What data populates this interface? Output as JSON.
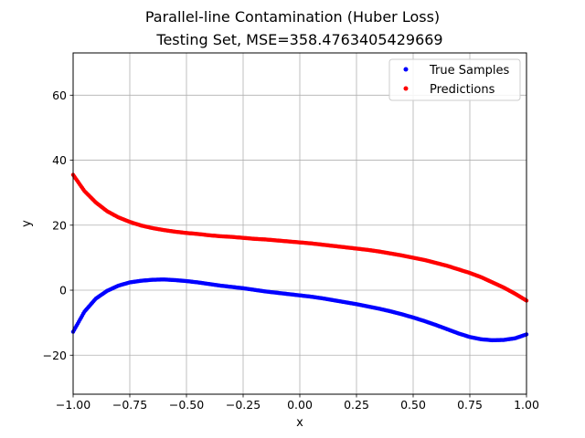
{
  "chart_data": {
    "type": "scatter",
    "title": "Parallel-line Contamination (Huber Loss)",
    "subtitle": "Testing Set, MSE=358.4763405429669",
    "xlabel": "x",
    "ylabel": "y",
    "xlim": [
      -1.0,
      1.0
    ],
    "ylim": [
      -32,
      73
    ],
    "xticks": [
      -1.0,
      -0.75,
      -0.5,
      -0.25,
      0.0,
      0.25,
      0.5,
      0.75,
      1.0
    ],
    "xtick_labels": [
      "−1.00",
      "−0.75",
      "−0.50",
      "−0.25",
      "0.00",
      "0.25",
      "0.50",
      "0.75",
      "1.00"
    ],
    "yticks": [
      -20,
      0,
      20,
      40,
      60
    ],
    "ytick_labels": [
      "−20",
      "0",
      "20",
      "40",
      "60"
    ],
    "grid": true,
    "legend_position": "top-right",
    "series": [
      {
        "name": "True Samples",
        "color": "#0000ff",
        "x": [
          -1.0,
          -0.95,
          -0.9,
          -0.85,
          -0.8,
          -0.75,
          -0.7,
          -0.65,
          -0.6,
          -0.55,
          -0.5,
          -0.45,
          -0.4,
          -0.35,
          -0.3,
          -0.25,
          -0.2,
          -0.15,
          -0.1,
          -0.05,
          0.0,
          0.05,
          0.1,
          0.15,
          0.2,
          0.25,
          0.3,
          0.35,
          0.4,
          0.45,
          0.5,
          0.55,
          0.6,
          0.65,
          0.7,
          0.75,
          0.8,
          0.85,
          0.9,
          0.95,
          1.0
        ],
        "y": [
          -12.8,
          -6.6,
          -2.6,
          -0.2,
          1.4,
          2.4,
          2.9,
          3.2,
          3.3,
          3.1,
          2.8,
          2.4,
          1.9,
          1.4,
          1.0,
          0.6,
          0.1,
          -0.4,
          -0.8,
          -1.2,
          -1.6,
          -2.0,
          -2.5,
          -3.1,
          -3.7,
          -4.3,
          -5.0,
          -5.7,
          -6.5,
          -7.4,
          -8.4,
          -9.5,
          -10.7,
          -12.0,
          -13.3,
          -14.4,
          -15.1,
          -15.4,
          -15.3,
          -14.8,
          -13.6
        ]
      },
      {
        "name": "Predictions",
        "color": "#ff0000",
        "x": [
          -1.0,
          -0.95,
          -0.9,
          -0.85,
          -0.8,
          -0.75,
          -0.7,
          -0.65,
          -0.6,
          -0.55,
          -0.5,
          -0.45,
          -0.4,
          -0.35,
          -0.3,
          -0.25,
          -0.2,
          -0.15,
          -0.1,
          -0.05,
          0.0,
          0.05,
          0.1,
          0.15,
          0.2,
          0.25,
          0.3,
          0.35,
          0.4,
          0.45,
          0.5,
          0.55,
          0.6,
          0.65,
          0.7,
          0.75,
          0.8,
          0.85,
          0.9,
          0.95,
          1.0
        ],
        "y": [
          35.5,
          30.5,
          27.0,
          24.3,
          22.4,
          21.0,
          19.9,
          19.1,
          18.5,
          18.0,
          17.6,
          17.3,
          16.9,
          16.6,
          16.4,
          16.1,
          15.8,
          15.6,
          15.3,
          15.0,
          14.7,
          14.4,
          14.0,
          13.6,
          13.2,
          12.8,
          12.4,
          11.9,
          11.3,
          10.7,
          10.0,
          9.3,
          8.4,
          7.5,
          6.4,
          5.3,
          4.0,
          2.4,
          0.8,
          -1.1,
          -3.2
        ]
      }
    ]
  }
}
